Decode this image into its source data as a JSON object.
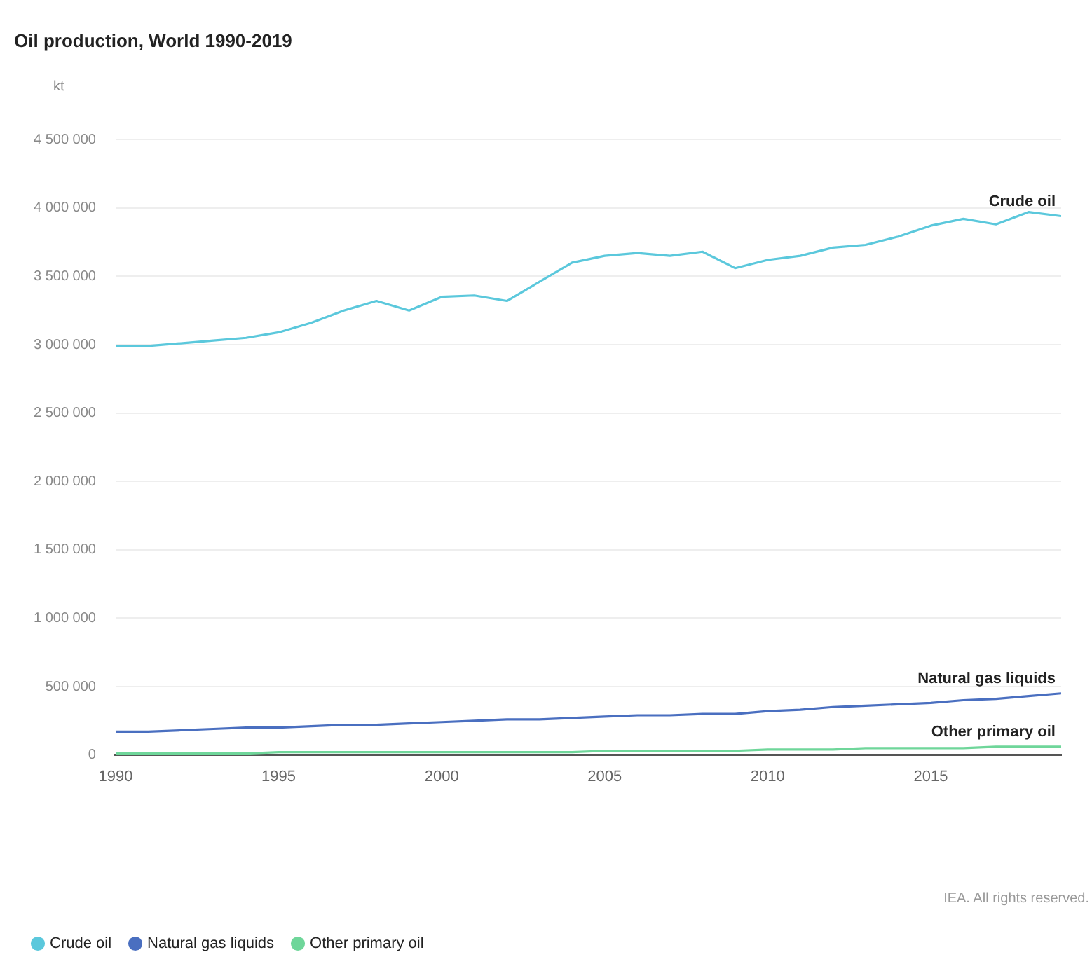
{
  "chart_data": {
    "type": "line",
    "title": "Oil production, World 1990-2019",
    "ylabel": "kt",
    "x": [
      1990,
      1991,
      1992,
      1993,
      1994,
      1995,
      1996,
      1997,
      1998,
      1999,
      2000,
      2001,
      2002,
      2003,
      2004,
      2005,
      2006,
      2007,
      2008,
      2009,
      2010,
      2011,
      2012,
      2013,
      2014,
      2015,
      2016,
      2017,
      2018,
      2019
    ],
    "series": [
      {
        "name": "Crude oil",
        "color": "#5bc8dc",
        "values": [
          2990000,
          2990000,
          3010000,
          3030000,
          3050000,
          3090000,
          3160000,
          3250000,
          3320000,
          3250000,
          3350000,
          3360000,
          3320000,
          3460000,
          3600000,
          3650000,
          3670000,
          3650000,
          3680000,
          3560000,
          3620000,
          3650000,
          3710000,
          3730000,
          3790000,
          3870000,
          3920000,
          3880000,
          3970000,
          3940000
        ]
      },
      {
        "name": "Natural gas liquids",
        "color": "#4a6fc0",
        "values": [
          170000,
          170000,
          180000,
          190000,
          200000,
          200000,
          210000,
          220000,
          220000,
          230000,
          240000,
          250000,
          260000,
          260000,
          270000,
          280000,
          290000,
          290000,
          300000,
          300000,
          320000,
          330000,
          350000,
          360000,
          370000,
          380000,
          400000,
          410000,
          430000,
          450000
        ]
      },
      {
        "name": "Other primary oil",
        "color": "#6fd69a",
        "values": [
          10000,
          10000,
          10000,
          10000,
          10000,
          20000,
          20000,
          20000,
          20000,
          20000,
          20000,
          20000,
          20000,
          20000,
          20000,
          30000,
          30000,
          30000,
          30000,
          30000,
          40000,
          40000,
          40000,
          50000,
          50000,
          50000,
          50000,
          60000,
          60000,
          60000
        ]
      }
    ],
    "xlim": [
      1990,
      2019
    ],
    "xticks": [
      1990,
      1995,
      2000,
      2005,
      2010,
      2015
    ],
    "ylim": [
      0,
      4500000
    ],
    "yticks": [
      {
        "value": 0,
        "label": "0"
      },
      {
        "value": 500000,
        "label": "500 000"
      },
      {
        "value": 1000000,
        "label": "1 000 000"
      },
      {
        "value": 1500000,
        "label": "1 500 000"
      },
      {
        "value": 2000000,
        "label": "2 000 000"
      },
      {
        "value": 2500000,
        "label": "2 500 000"
      },
      {
        "value": 3000000,
        "label": "3 000 000"
      },
      {
        "value": 3500000,
        "label": "3 500 000"
      },
      {
        "value": 4000000,
        "label": "4 000 000"
      },
      {
        "value": 4500000,
        "label": "4 500 000"
      }
    ],
    "grid": "y",
    "legend": "bottom left",
    "marker": "none",
    "line_style": "solid",
    "annotations": [
      "IEA. All rights reserved."
    ]
  }
}
